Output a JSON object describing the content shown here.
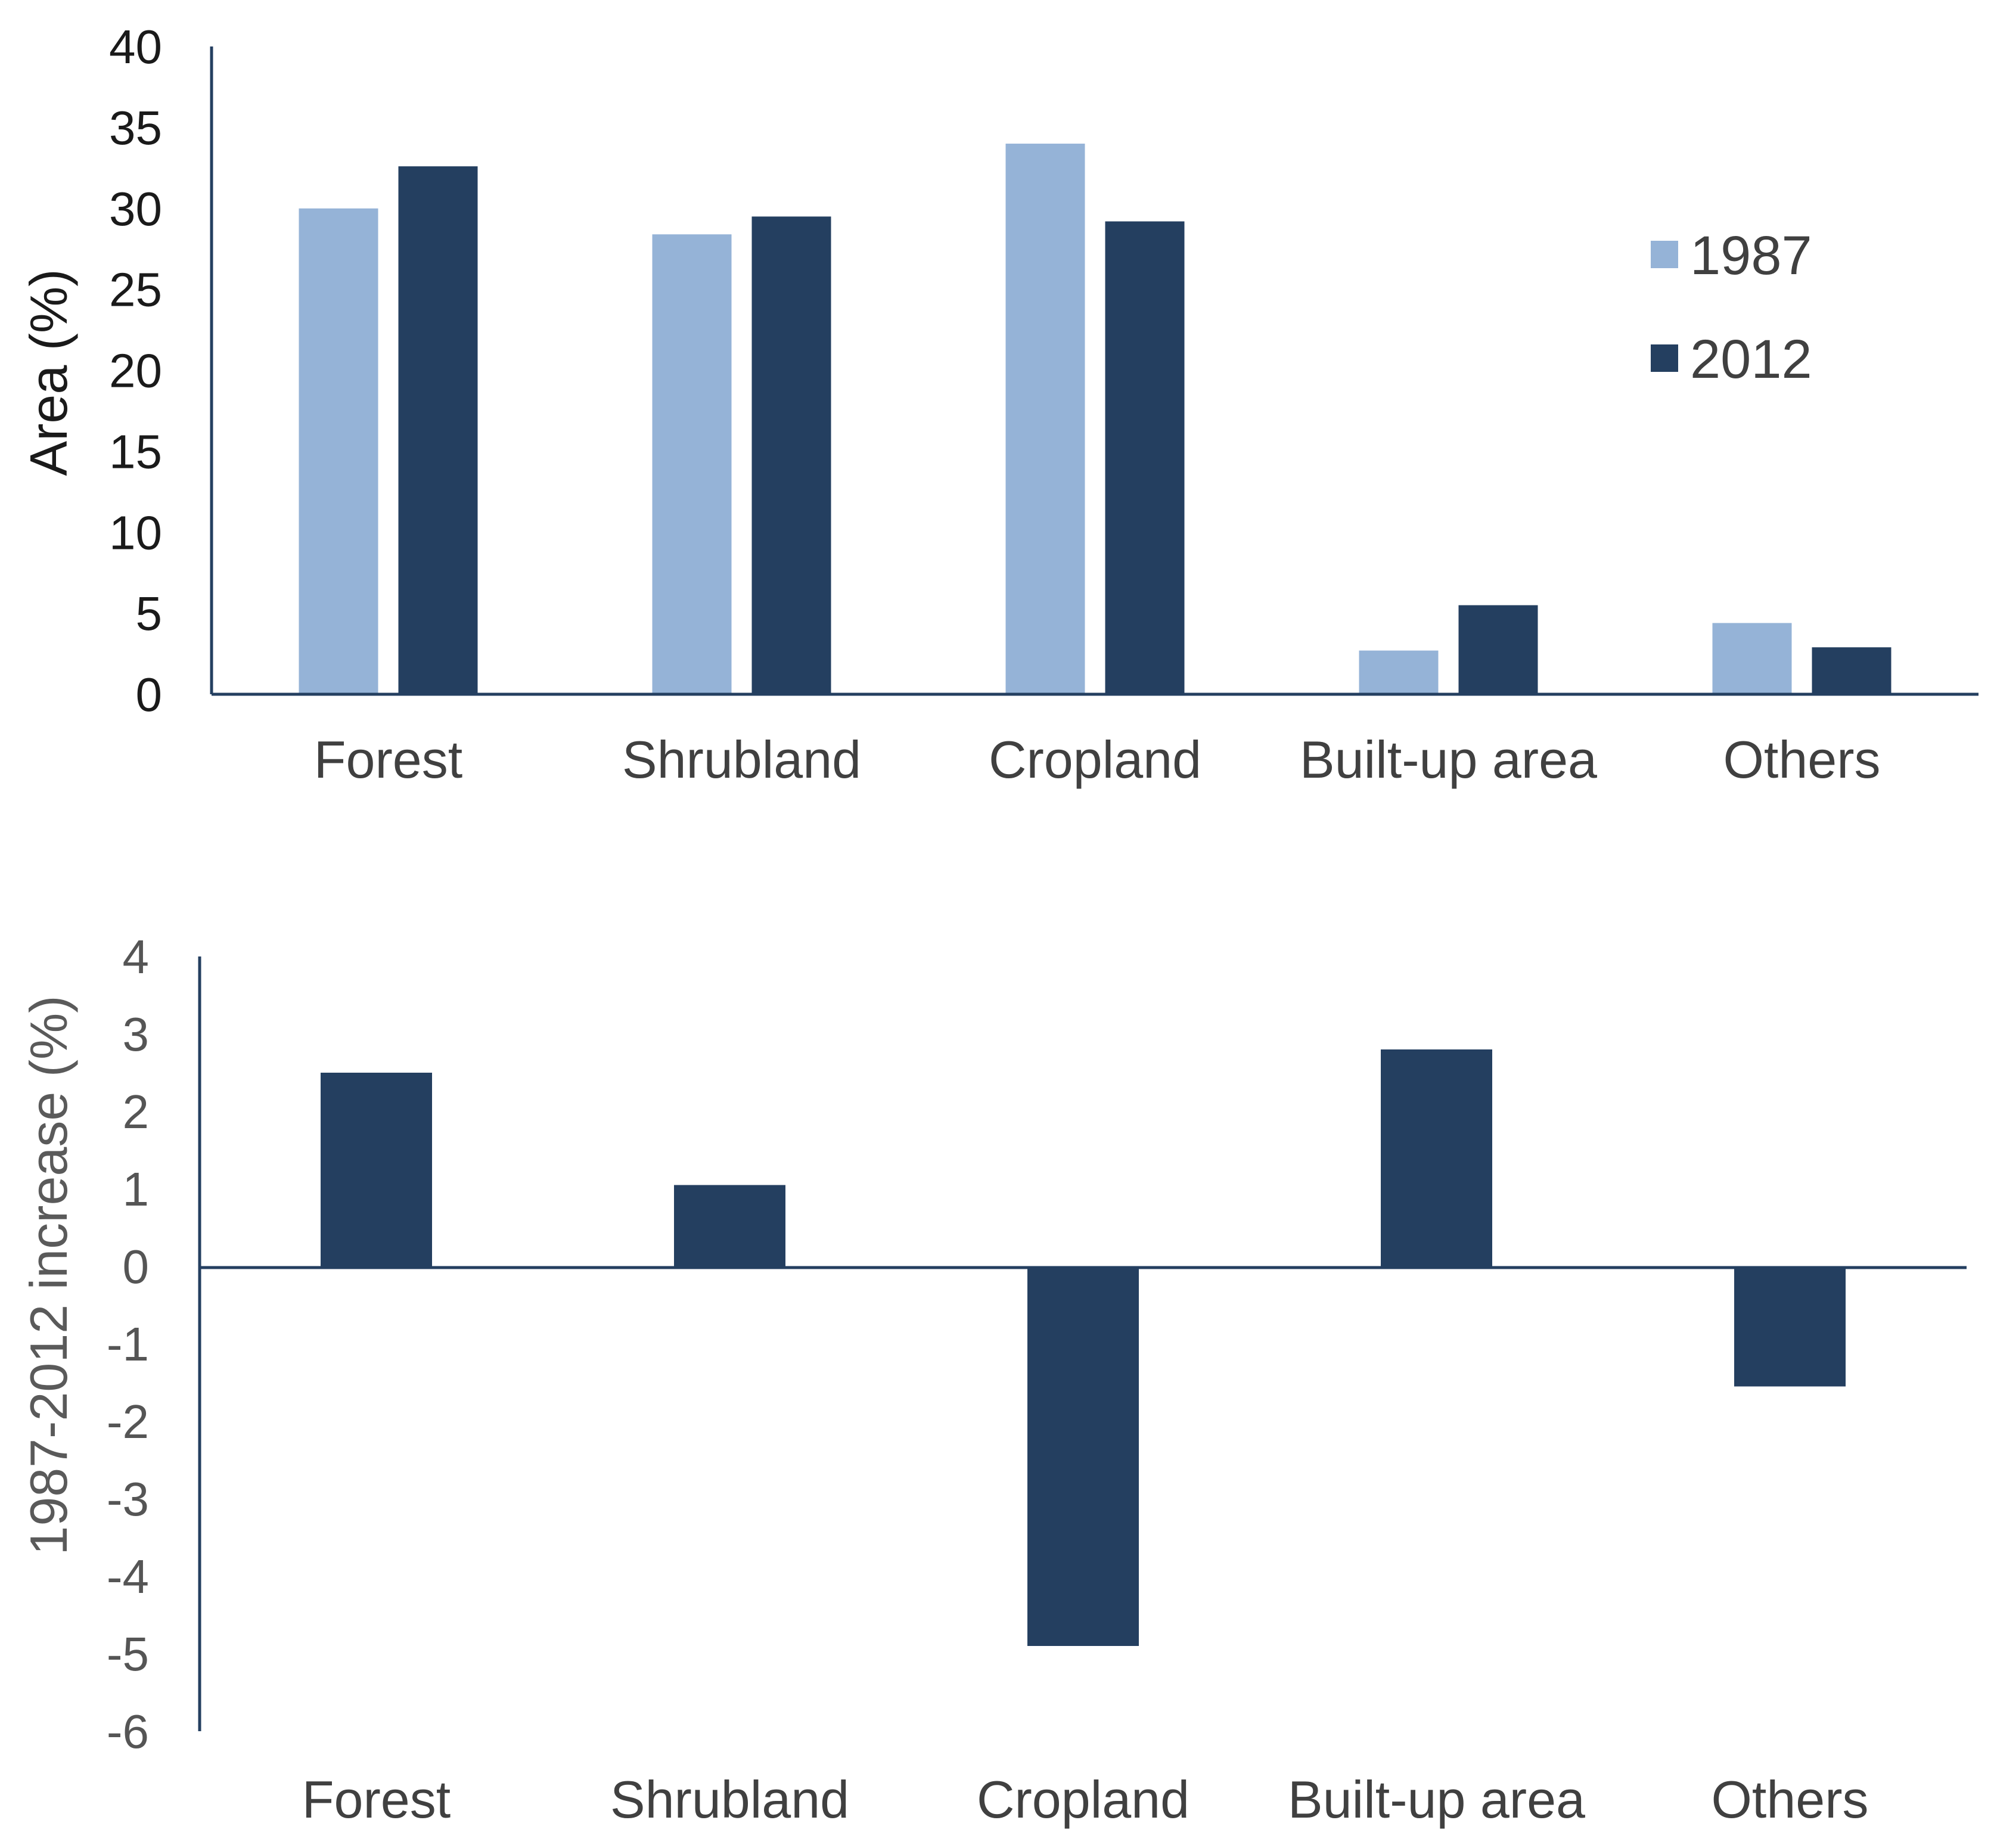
{
  "chart_data": [
    {
      "type": "bar",
      "title": "",
      "xlabel": "",
      "ylabel": "Area (%)",
      "ylim": [
        0,
        40
      ],
      "yticks": [
        0,
        5,
        10,
        15,
        20,
        25,
        30,
        35,
        40
      ],
      "categories": [
        "Forest",
        "Shrubland",
        "Cropland",
        "Built-up area",
        "Others"
      ],
      "series": [
        {
          "name": "1987",
          "color": "#95b3d7",
          "values": [
            30.0,
            28.4,
            34.0,
            2.7,
            4.4
          ]
        },
        {
          "name": "2012",
          "color": "#243f60",
          "values": [
            32.6,
            29.5,
            29.2,
            5.5,
            2.9
          ]
        }
      ],
      "legend": {
        "position": "right",
        "entries": [
          "1987",
          "2012"
        ]
      }
    },
    {
      "type": "bar",
      "title": "",
      "xlabel": "",
      "ylabel": "1987-2012 increase (%)",
      "ylim": [
        -6,
        4
      ],
      "yticks": [
        -6,
        -5,
        -4,
        -3,
        -2,
        -1,
        0,
        1,
        2,
        3,
        4
      ],
      "categories": [
        "Forest",
        "Shrubland",
        "Cropland",
        "Built-up area",
        "Others"
      ],
      "series": [
        {
          "name": "1987-2012 increase",
          "color": "#243f60",
          "values": [
            2.5,
            1.05,
            -4.9,
            2.8,
            -1.55
          ]
        }
      ]
    }
  ]
}
